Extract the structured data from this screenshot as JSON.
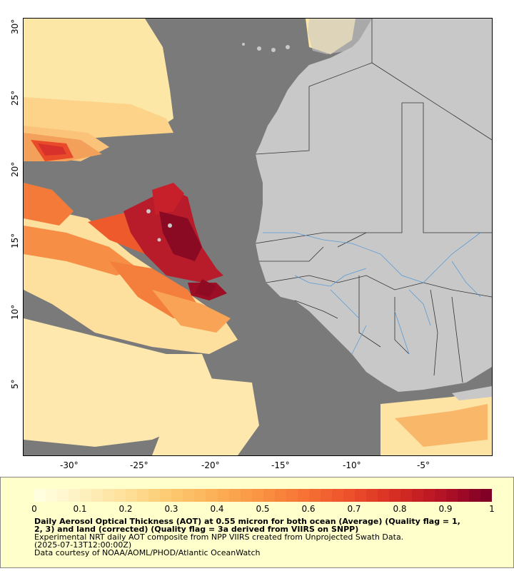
{
  "map": {
    "x_ticks": [
      "-30°",
      "-25°",
      "-20°",
      "-15°",
      "-10°",
      "-5°"
    ],
    "y_ticks": [
      "30°",
      "25°",
      "20°",
      "15°",
      "10°",
      "5°"
    ],
    "colors": {
      "ocean": "#7a7a7a",
      "land": "#c8c8c8",
      "borders": "#333333",
      "rivers": "#5b9bd5"
    }
  },
  "colorbar": {
    "ticks": [
      "0",
      "0.1",
      "0.2",
      "0.3",
      "0.4",
      "0.5",
      "0.6",
      "0.7",
      "0.8",
      "0.9",
      "1"
    ],
    "range": [
      0,
      1
    ]
  },
  "caption": {
    "title_line1": "Daily Aerosol Optical Thickness (AOT) at 0.55 micron for both ocean (Average) (Quality flag = 1,",
    "title_line2": "2, 3) and land (corrected) (Quality flag = 3a derived from VIIRS on SNPP)",
    "line3": "Experimental NRT daily AOT composite from NPP VIIRS created from Unprojected Swath Data.",
    "line4": "(2025-07-13T12:00:00Z)",
    "line5": "Data courtesy of NOAA/AOML/PHOD/Atlantic OceanWatch"
  }
}
